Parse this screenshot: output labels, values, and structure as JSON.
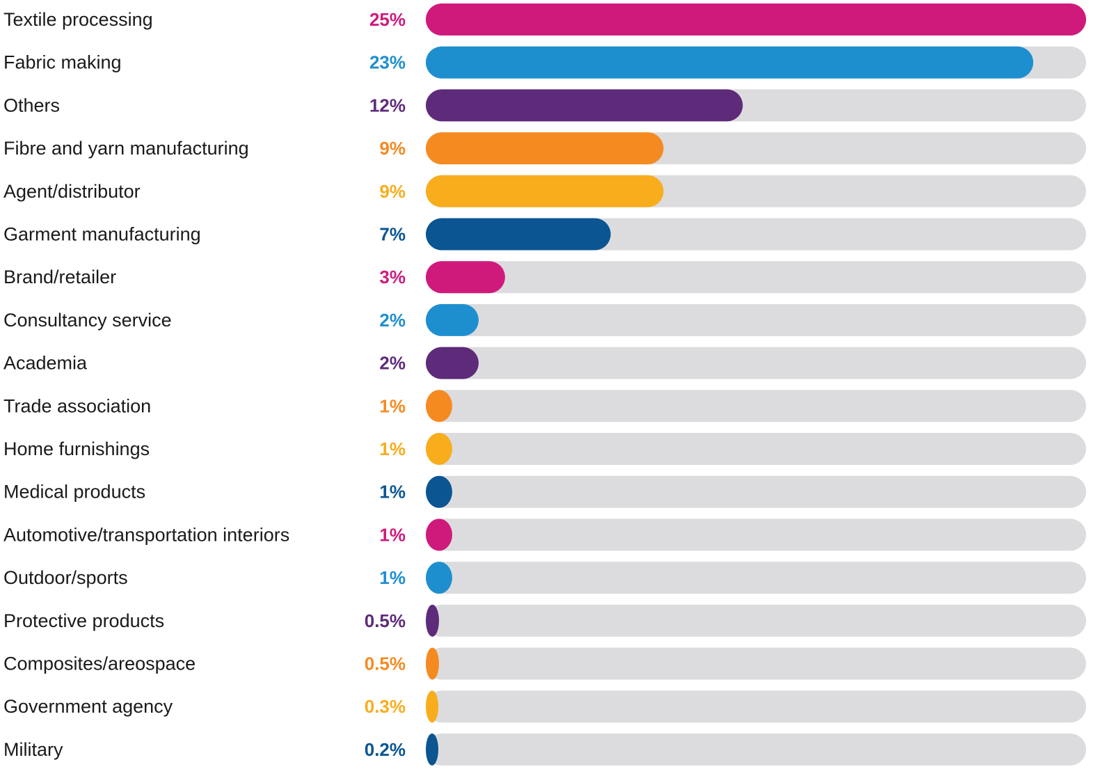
{
  "chart_data": {
    "type": "bar",
    "orientation": "horizontal",
    "categories": [
      "Textile processing",
      "Fabric making",
      "Others",
      "Fibre and yarn manufacturing",
      "Agent/distributor",
      "Garment manufacturing",
      "Brand/retailer",
      "Consultancy service",
      "Academia",
      "Trade association",
      "Home furnishings",
      "Medical products",
      "Automotive/transportation interiors",
      "Outdoor/sports",
      "Protective products",
      "Composites/areospace",
      "Government agency",
      "Military"
    ],
    "values": [
      25,
      23,
      12,
      9,
      9,
      7,
      3,
      2,
      2,
      1,
      1,
      1,
      1,
      1,
      0.5,
      0.5,
      0.3,
      0.2
    ],
    "value_labels": [
      "25%",
      "23%",
      "12%",
      "9%",
      "9%",
      "7%",
      "3%",
      "2%",
      "2%",
      "1%",
      "1%",
      "1%",
      "1%",
      "1%",
      "0.5%",
      "0.5%",
      "0.3%",
      "0.2%"
    ],
    "unit": "%",
    "xlim": [
      0,
      25
    ],
    "grid": false,
    "legend": "none",
    "colors": [
      "#cf1a7c",
      "#1e8fce",
      "#5e2a7a",
      "#f58a21",
      "#f8ad1d",
      "#0a5592"
    ],
    "track_color": "#dcdcde"
  }
}
